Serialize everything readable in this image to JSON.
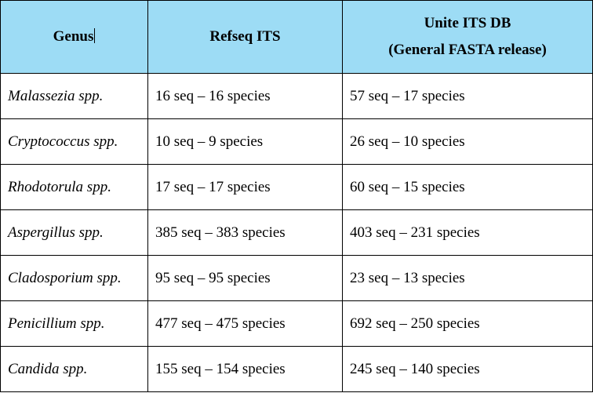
{
  "colors": {
    "header_bg": "#9ddcf5",
    "border": "#000000",
    "text": "#000000",
    "body_bg": "#ffffff"
  },
  "table": {
    "headers": {
      "genus": "Genus",
      "refseq": "Refseq ITS",
      "unite_line1": "Unite ITS DB",
      "unite_line2": "(General FASTA release)"
    },
    "rows": [
      {
        "genus": "Malassezia spp.",
        "refseq": "16 seq – 16 species",
        "unite": "57 seq – 17 species"
      },
      {
        "genus": "Cryptococcus spp.",
        "refseq": "10 seq – 9 species",
        "unite": "26 seq – 10 species"
      },
      {
        "genus": "Rhodotorula spp.",
        "refseq": "17 seq – 17 species",
        "unite": "60 seq – 15 species"
      },
      {
        "genus": "Aspergillus spp.",
        "refseq": "385 seq – 383 species",
        "unite": "403 seq – 231 species"
      },
      {
        "genus": "Cladosporium spp.",
        "refseq": "95 seq – 95 species",
        "unite": "23 seq – 13 species"
      },
      {
        "genus": "Penicillium spp.",
        "refseq": "477 seq – 475 species",
        "unite": "692 seq – 250 species"
      },
      {
        "genus": "Candida spp.",
        "refseq": "155 seq – 154 species",
        "unite": "245 seq – 140 species"
      }
    ]
  }
}
